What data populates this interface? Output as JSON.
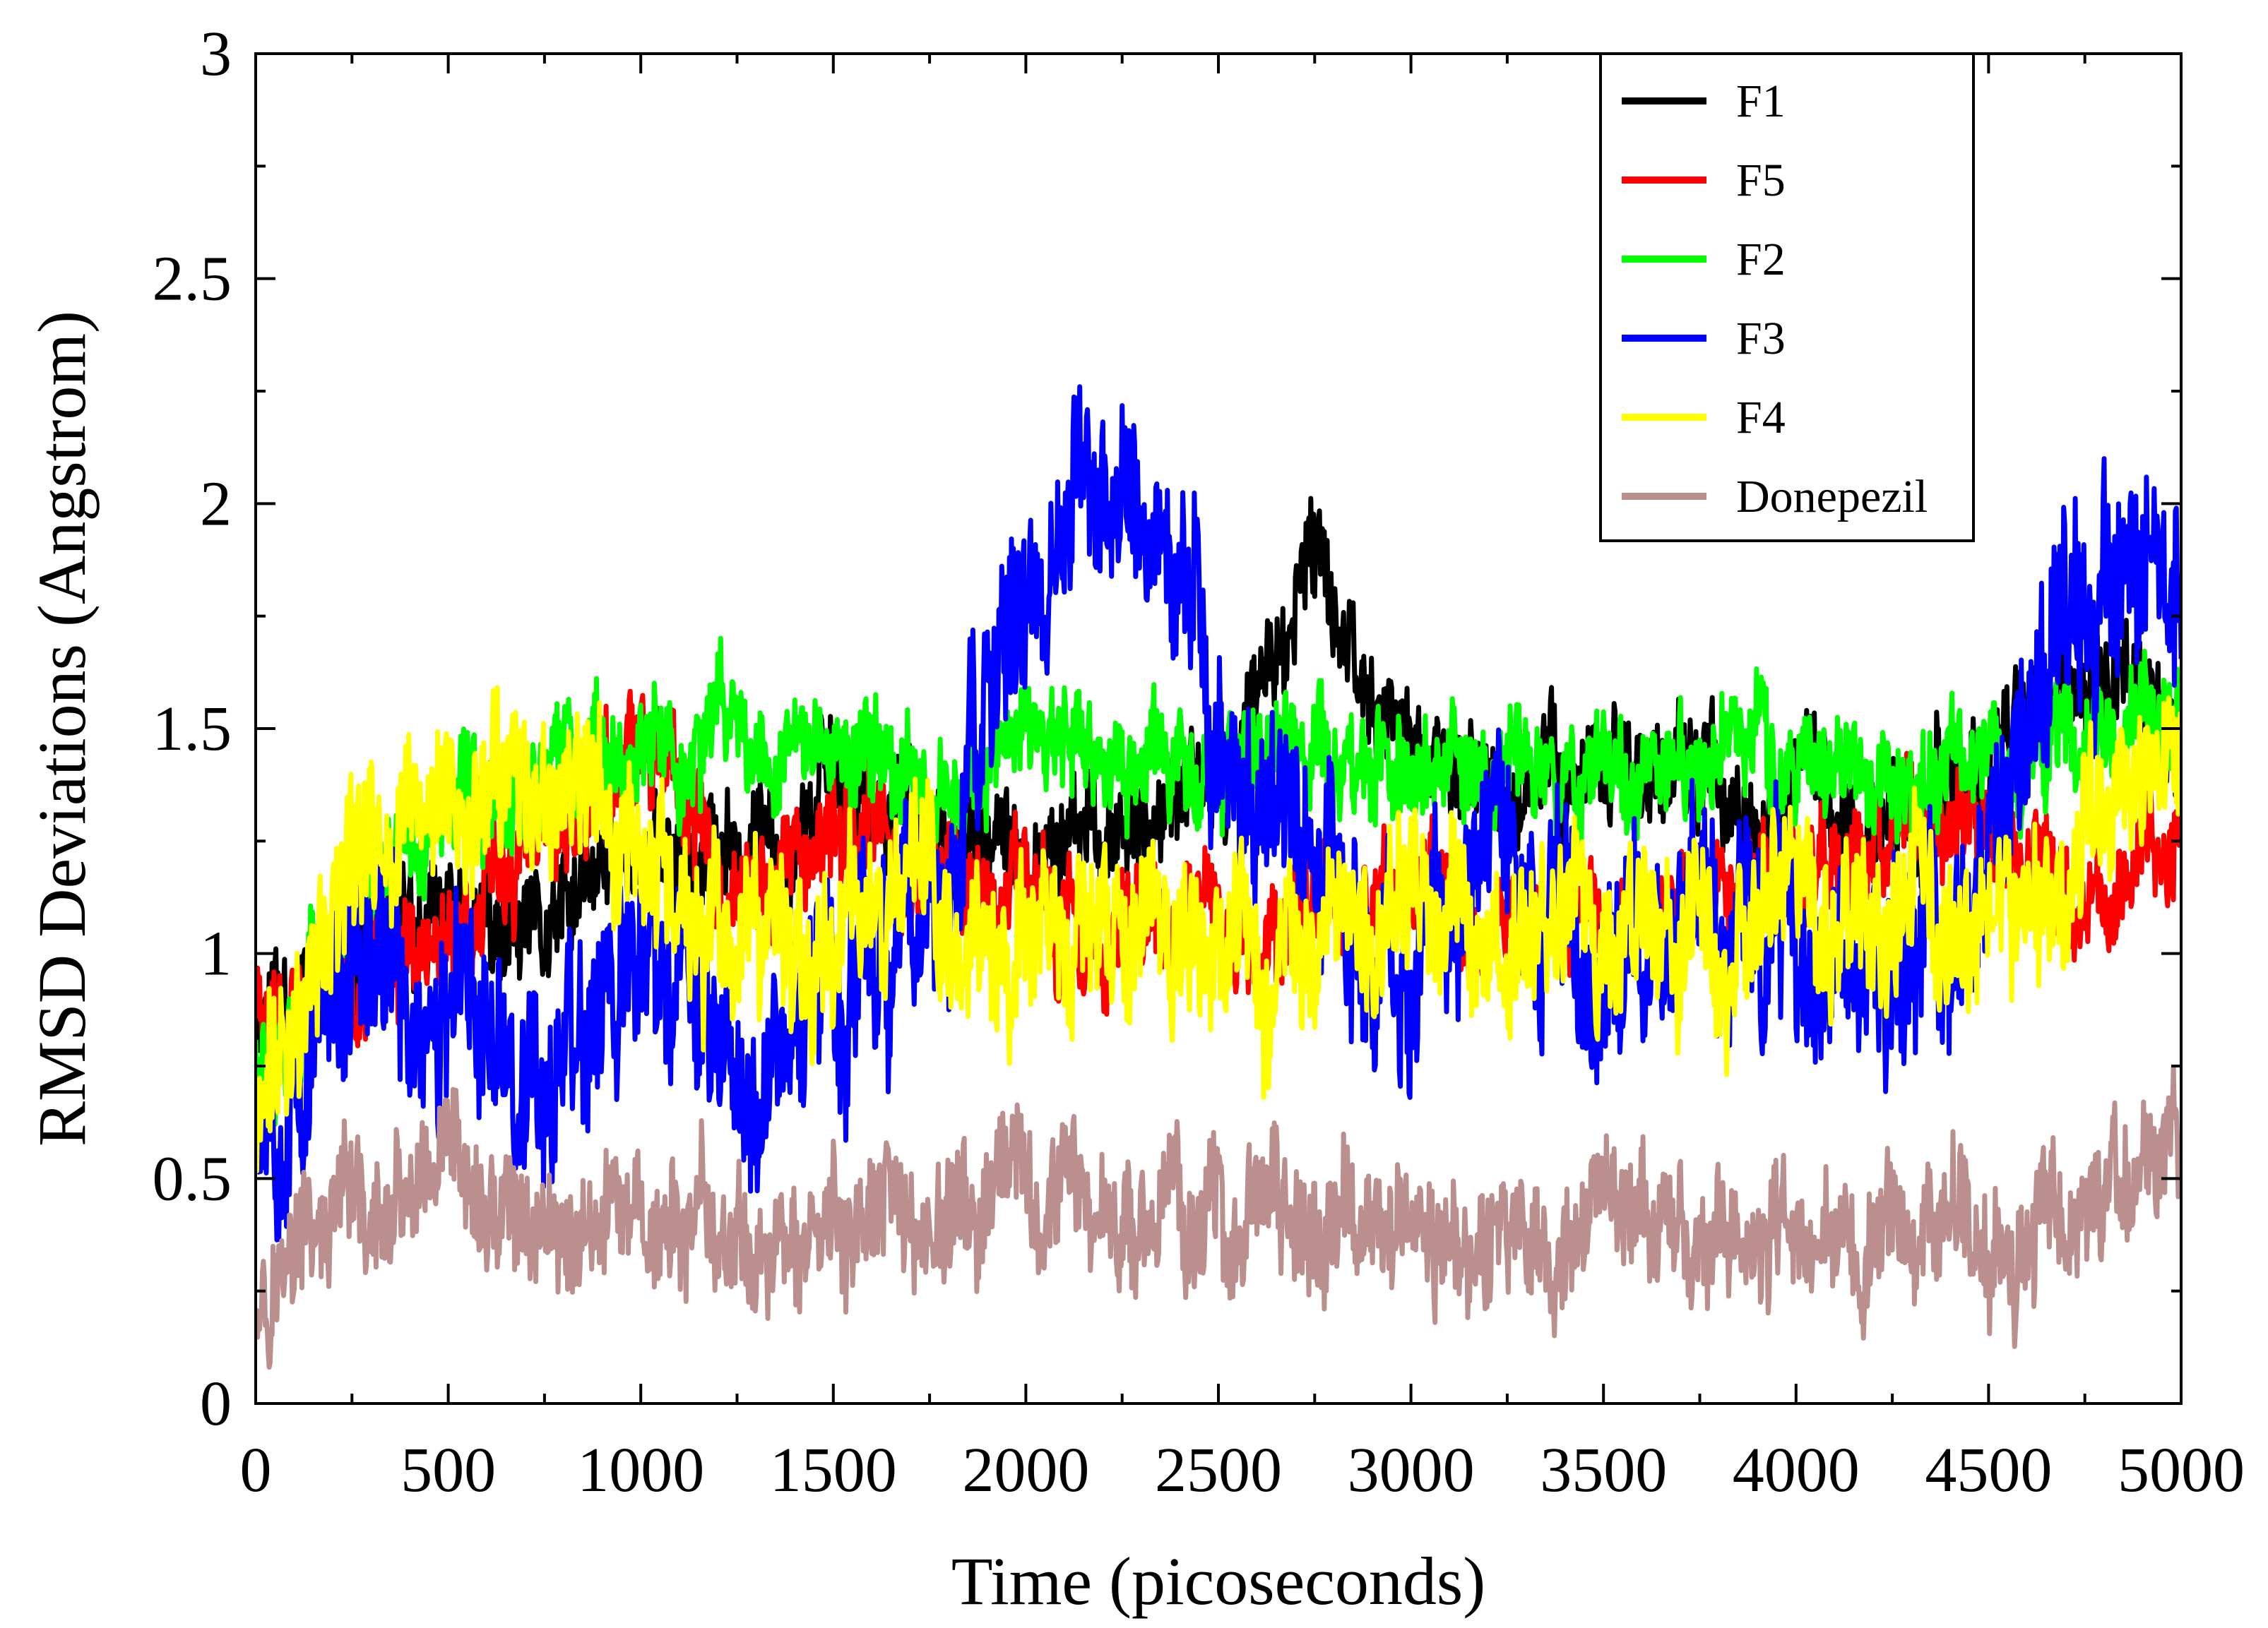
{
  "chart_data": {
    "type": "line",
    "title": "",
    "xlabel": "Time (picoseconds)",
    "ylabel": "RMSD Deviations (Angstrom)",
    "xlim": [
      0,
      5000
    ],
    "ylim": [
      0,
      3
    ],
    "xticks": [
      0,
      500,
      1000,
      1500,
      2000,
      2500,
      3000,
      3500,
      4000,
      4500,
      5000
    ],
    "yticks": [
      0,
      0.5,
      1,
      1.5,
      2,
      2.5,
      3
    ],
    "ytick_labels": [
      "0",
      "0.5",
      "1",
      "1.5",
      "2",
      "2.5",
      "3"
    ],
    "legend_position": "top-right",
    "x": [
      0,
      250,
      500,
      750,
      1000,
      1250,
      1500,
      1750,
      2000,
      2250,
      2500,
      2750,
      3000,
      3250,
      3500,
      3750,
      4000,
      4250,
      4500,
      4750,
      5000
    ],
    "series": [
      {
        "name": "F1",
        "color": "#000000",
        "noise": 0.12,
        "seed": 11,
        "values": [
          0.9,
          1.0,
          1.05,
          1.0,
          1.25,
          1.2,
          1.4,
          1.3,
          1.15,
          1.3,
          1.35,
          1.85,
          1.45,
          1.35,
          1.45,
          1.35,
          1.4,
          1.25,
          1.5,
          1.6,
          1.45
        ]
      },
      {
        "name": "F5",
        "color": "#ff0000",
        "noise": 0.12,
        "seed": 23,
        "values": [
          0.9,
          1.0,
          1.05,
          1.25,
          1.45,
          1.1,
          1.3,
          1.2,
          1.1,
          1.0,
          1.05,
          1.1,
          1.15,
          1.1,
          1.1,
          1.15,
          1.2,
          1.2,
          1.3,
          1.1,
          1.3
        ]
      },
      {
        "name": "F2",
        "color": "#00ff00",
        "noise": 0.12,
        "seed": 37,
        "values": [
          0.8,
          1.1,
          1.3,
          1.45,
          1.4,
          1.5,
          1.45,
          1.4,
          1.45,
          1.4,
          1.45,
          1.45,
          1.4,
          1.4,
          1.45,
          1.45,
          1.45,
          1.35,
          1.45,
          1.5,
          1.55
        ]
      },
      {
        "name": "F3",
        "color": "#0000ff",
        "noise": 0.22,
        "seed": 53,
        "values": [
          0.7,
          0.9,
          0.85,
          0.8,
          0.95,
          0.8,
          0.95,
          1.0,
          1.8,
          2.05,
          1.5,
          1.2,
          1.0,
          1.2,
          1.0,
          1.1,
          1.0,
          1.0,
          1.2,
          1.7,
          1.85
        ]
      },
      {
        "name": "F4",
        "color": "#ffff00",
        "noise": 0.18,
        "seed": 71,
        "values": [
          0.6,
          1.2,
          1.3,
          1.3,
          1.25,
          0.9,
          1.1,
          1.2,
          0.95,
          1.0,
          1.05,
          0.95,
          1.1,
          1.0,
          1.1,
          1.05,
          1.15,
          1.1,
          1.05,
          1.3,
          1.55
        ]
      },
      {
        "name": "Donepezil",
        "color": "#bc8f8f",
        "noise": 0.14,
        "seed": 97,
        "values": [
          0.3,
          0.38,
          0.4,
          0.4,
          0.38,
          0.35,
          0.35,
          0.4,
          0.4,
          0.45,
          0.42,
          0.4,
          0.38,
          0.38,
          0.38,
          0.35,
          0.38,
          0.4,
          0.4,
          0.38,
          0.6
        ]
      }
    ]
  }
}
